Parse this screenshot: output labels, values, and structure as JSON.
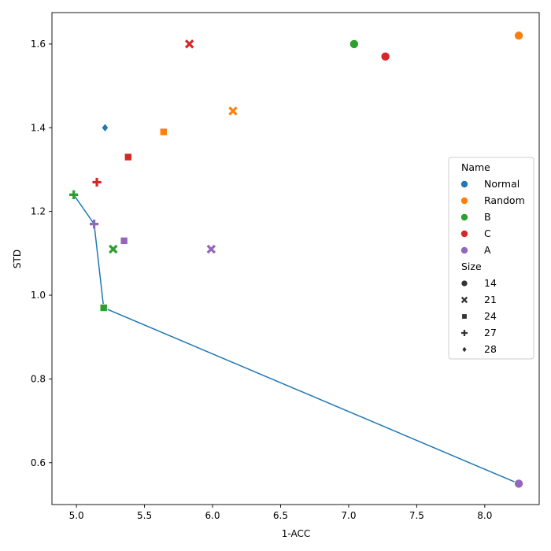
{
  "chart_data": {
    "type": "scatter",
    "title": "",
    "xlabel": "1-ACC",
    "ylabel": "STD",
    "xlim": [
      4.82,
      8.4
    ],
    "ylim": [
      0.5,
      1.675
    ],
    "x_ticks": [
      5.0,
      5.5,
      6.0,
      6.5,
      7.0,
      7.5,
      8.0
    ],
    "x_tick_labels": [
      "5.0",
      "5.5",
      "6.0",
      "6.5",
      "7.0",
      "7.5",
      "8.0"
    ],
    "y_ticks": [
      0.6,
      0.8,
      1.0,
      1.2,
      1.4,
      1.6
    ],
    "y_tick_labels": [
      "0.6",
      "0.8",
      "1.0",
      "1.2",
      "1.4",
      "1.6"
    ],
    "grid": false,
    "hue_legend": {
      "title": "Name",
      "entries": [
        {
          "label": "Normal",
          "color": "#1f77b4"
        },
        {
          "label": "Random",
          "color": "#ff7f0e"
        },
        {
          "label": "B",
          "color": "#2ca02c"
        },
        {
          "label": "C",
          "color": "#d62728"
        },
        {
          "label": "A",
          "color": "#9467bd"
        }
      ]
    },
    "style_legend": {
      "title": "Size",
      "entries": [
        {
          "label": "14",
          "marker": "circle"
        },
        {
          "label": "21",
          "marker": "x"
        },
        {
          "label": "24",
          "marker": "square"
        },
        {
          "label": "27",
          "marker": "plus"
        },
        {
          "label": "28",
          "marker": "diamond"
        }
      ]
    },
    "legend_position": "center-right",
    "points": [
      {
        "x": 5.21,
        "y": 1.4,
        "name": "Normal",
        "size": "28"
      },
      {
        "x": 8.25,
        "y": 1.62,
        "name": "Random",
        "size": "14"
      },
      {
        "x": 6.15,
        "y": 1.44,
        "name": "Random",
        "size": "21"
      },
      {
        "x": 5.64,
        "y": 1.39,
        "name": "Random",
        "size": "24"
      },
      {
        "x": 7.04,
        "y": 1.6,
        "name": "B",
        "size": "14"
      },
      {
        "x": 5.27,
        "y": 1.11,
        "name": "B",
        "size": "21"
      },
      {
        "x": 5.2,
        "y": 0.97,
        "name": "B",
        "size": "24"
      },
      {
        "x": 4.98,
        "y": 1.24,
        "name": "B",
        "size": "27"
      },
      {
        "x": 7.27,
        "y": 1.57,
        "name": "C",
        "size": "14"
      },
      {
        "x": 5.83,
        "y": 1.6,
        "name": "C",
        "size": "21"
      },
      {
        "x": 5.38,
        "y": 1.33,
        "name": "C",
        "size": "24"
      },
      {
        "x": 5.15,
        "y": 1.27,
        "name": "C",
        "size": "27"
      },
      {
        "x": 8.25,
        "y": 0.55,
        "name": "A",
        "size": "14"
      },
      {
        "x": 5.99,
        "y": 1.11,
        "name": "A",
        "size": "21"
      },
      {
        "x": 5.35,
        "y": 1.13,
        "name": "A",
        "size": "24"
      },
      {
        "x": 5.13,
        "y": 1.17,
        "name": "A",
        "size": "27"
      }
    ],
    "line": {
      "color": "#1f77b4",
      "x": [
        4.98,
        5.13,
        5.2,
        8.25
      ],
      "y": [
        1.24,
        1.17,
        0.97,
        0.55
      ]
    }
  }
}
